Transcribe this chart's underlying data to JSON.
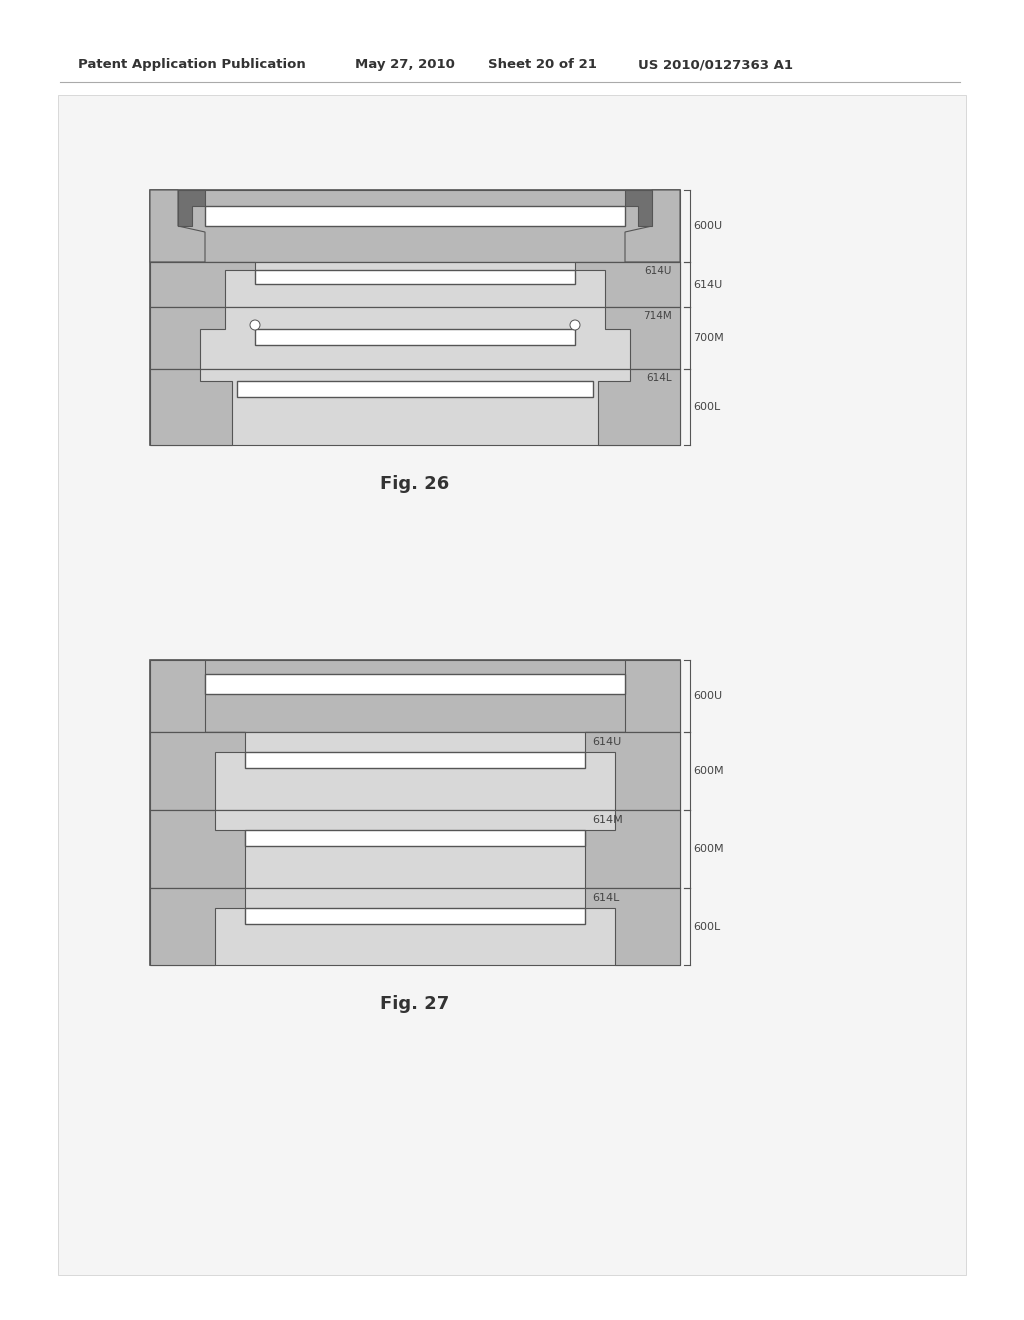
{
  "bg_color": "#ffffff",
  "header_text": "Patent Application Publication",
  "header_date": "May 27, 2010",
  "header_sheet": "Sheet 20 of 21",
  "header_patent": "US 2010/0127363 A1",
  "fig26_caption": "Fig. 26",
  "fig27_caption": "Fig. 27",
  "light_gray": "#d8d8d8",
  "medium_gray": "#b8b8b8",
  "dark_gray": "#707070",
  "white": "#ffffff",
  "outer_border": "#555555",
  "text_color": "#333333",
  "label_color": "#444444"
}
